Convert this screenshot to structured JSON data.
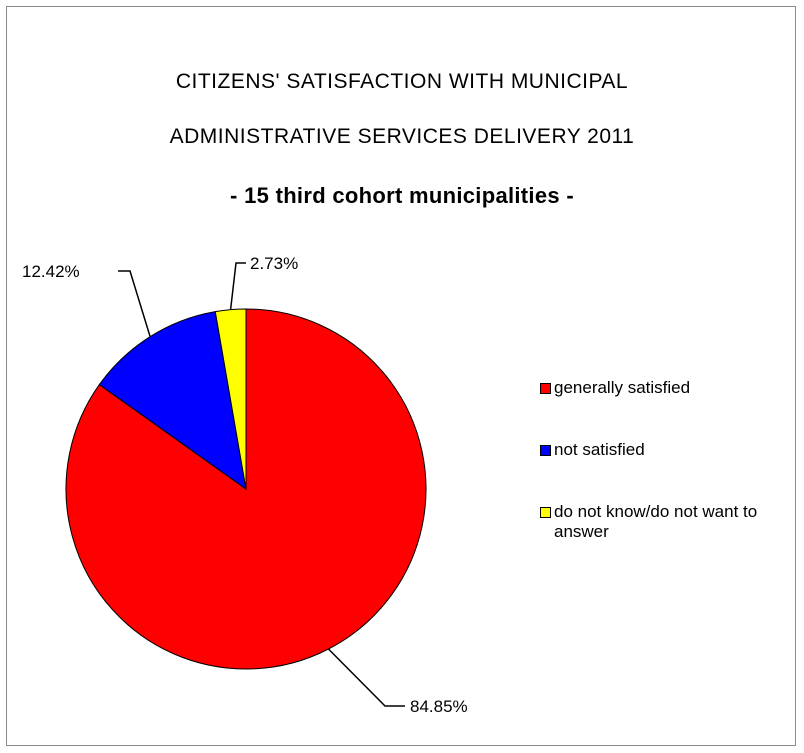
{
  "chart_data": {
    "type": "pie",
    "title_line1": "CITIZENS' SATISFACTION WITH MUNICIPAL",
    "title_line2": "ADMINISTRATIVE SERVICES DELIVERY 2011",
    "subtitle": "- 15 third cohort municipalities -",
    "slices": [
      {
        "name": "generally satisfied",
        "value": 84.85,
        "label": "84.85%",
        "color": "#ff0000"
      },
      {
        "name": "not satisfied",
        "value": 12.42,
        "label": "12.42%",
        "color": "#0000ff"
      },
      {
        "name": "do not know/do not want to answer",
        "value": 2.73,
        "label": "2.73%",
        "color": "#ffff00"
      }
    ],
    "legend_position": "right"
  },
  "legend": {
    "items": [
      {
        "label": "generally satisfied",
        "color": "#ff0000"
      },
      {
        "label": "not satisfied",
        "color": "#0000ff"
      },
      {
        "label": "do not know/do not want to answer",
        "color": "#ffff00"
      }
    ]
  }
}
